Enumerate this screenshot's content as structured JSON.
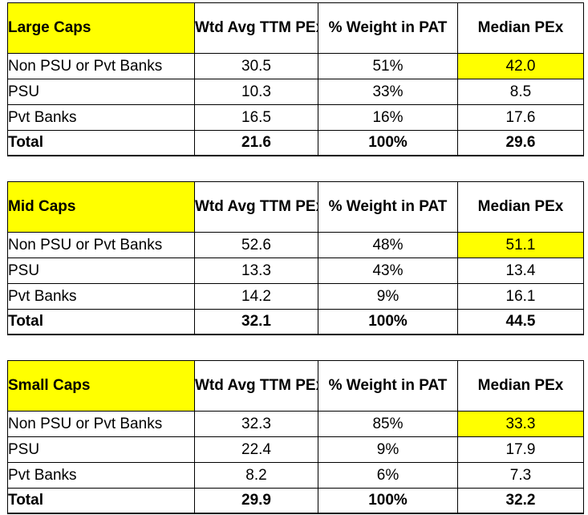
{
  "colors": {
    "highlight": "#ffff00",
    "border": "#000000",
    "background": "#ffffff"
  },
  "headers": {
    "wtd_avg": "Wtd Avg TTM PEx",
    "weight": "% Weight in PAT",
    "median": "Median PEx"
  },
  "groups": [
    {
      "title": "Large Caps",
      "rows": [
        {
          "label": "Non PSU or Pvt Banks",
          "wtd_avg": "30.5",
          "weight": "51%",
          "median": "42.0"
        },
        {
          "label": "PSU",
          "wtd_avg": "10.3",
          "weight": "33%",
          "median": "8.5"
        },
        {
          "label": "Pvt Banks",
          "wtd_avg": "16.5",
          "weight": "16%",
          "median": "17.6"
        }
      ],
      "total": {
        "label": "Total",
        "wtd_avg": "21.6",
        "weight": "100%",
        "median": "29.6"
      }
    },
    {
      "title": "Mid Caps",
      "rows": [
        {
          "label": "Non PSU or Pvt Banks",
          "wtd_avg": "52.6",
          "weight": "48%",
          "median": "51.1"
        },
        {
          "label": "PSU",
          "wtd_avg": "13.3",
          "weight": "43%",
          "median": "13.4"
        },
        {
          "label": "Pvt Banks",
          "wtd_avg": "14.2",
          "weight": "9%",
          "median": "16.1"
        }
      ],
      "total": {
        "label": "Total",
        "wtd_avg": "32.1",
        "weight": "100%",
        "median": "44.5"
      }
    },
    {
      "title": "Small Caps",
      "rows": [
        {
          "label": "Non PSU or Pvt Banks",
          "wtd_avg": "32.3",
          "weight": "85%",
          "median": "33.3"
        },
        {
          "label": "PSU",
          "wtd_avg": "22.4",
          "weight": "9%",
          "median": "17.9"
        },
        {
          "label": "Pvt Banks",
          "wtd_avg": "8.2",
          "weight": "6%",
          "median": "7.3"
        }
      ],
      "total": {
        "label": "Total",
        "wtd_avg": "29.9",
        "weight": "100%",
        "median": "32.2"
      }
    }
  ]
}
